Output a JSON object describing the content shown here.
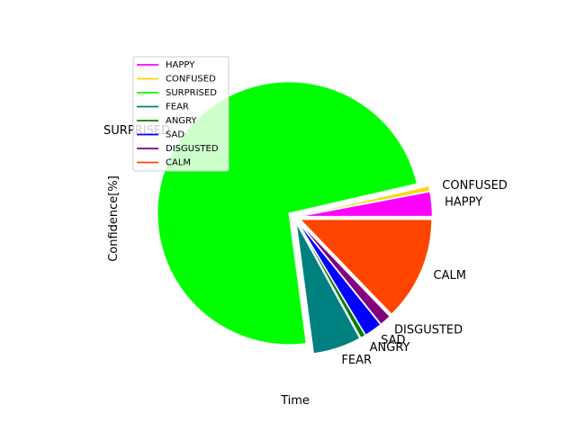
{
  "chart_data": {
    "type": "pie",
    "title": "",
    "xlabel": "Time",
    "ylabel": "Confidence[%]",
    "legend_placement": "upper-left",
    "start_angle_deg": 0,
    "direction": "counterclockwise",
    "exploded": true,
    "series": [
      {
        "name": "HAPPY",
        "value": 3.0,
        "color": "#ff00ff"
      },
      {
        "name": "CONFUSED",
        "value": 0.6,
        "color": "#ffd700"
      },
      {
        "name": "SURPRISED",
        "value": 73.5,
        "color": "#00ff00"
      },
      {
        "name": "FEAR",
        "value": 5.9,
        "color": "#008080"
      },
      {
        "name": "ANGRY",
        "value": 0.6,
        "color": "#008000"
      },
      {
        "name": "SAD",
        "value": 2.2,
        "color": "#0000ff"
      },
      {
        "name": "DISGUSTED",
        "value": 1.4,
        "color": "#800080"
      },
      {
        "name": "CALM",
        "value": 12.8,
        "color": "#ff4500"
      }
    ]
  }
}
